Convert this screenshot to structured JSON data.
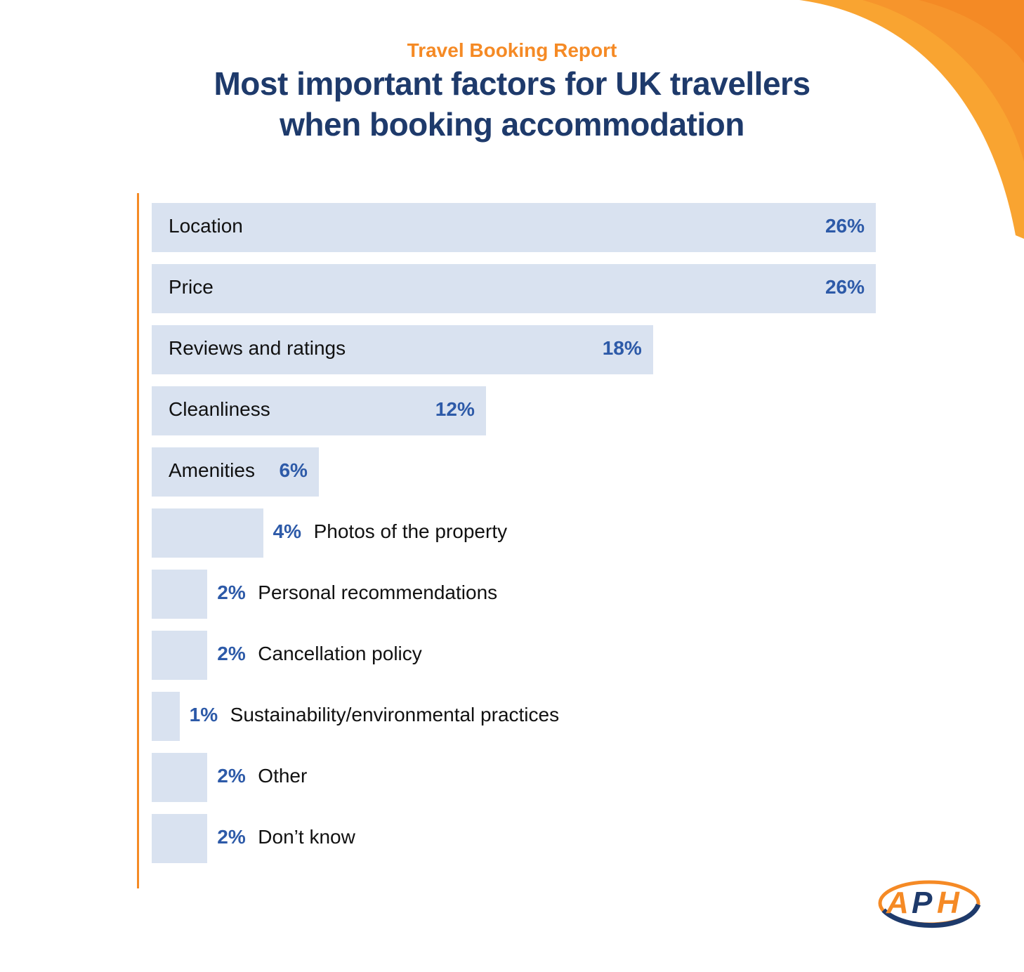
{
  "chart_data": {
    "type": "bar",
    "orientation": "horizontal",
    "kicker": "Travel Booking Report",
    "title_line1": "Most important factors for UK travellers",
    "title_line2": "when booking accommodation",
    "categories": [
      "Location",
      "Price",
      "Reviews and ratings",
      "Cleanliness",
      "Amenities",
      "Photos of the property",
      "Personal recommendations",
      "Cancellation policy",
      "Sustainability/environmental practices",
      "Other",
      "Don’t know"
    ],
    "values": [
      26,
      26,
      18,
      12,
      6,
      4,
      2,
      2,
      1,
      2,
      2
    ],
    "value_labels": [
      "26%",
      "26%",
      "18%",
      "12%",
      "6%",
      "4%",
      "2%",
      "2%",
      "1%",
      "2%",
      "2%"
    ],
    "xlim": [
      0,
      26
    ],
    "grid": false,
    "colors": {
      "bar": "#d9e2f0",
      "value": "#2d5aa8",
      "accent": "#f58a25",
      "title": "#1e3a6b"
    }
  },
  "logo_text": "APH"
}
